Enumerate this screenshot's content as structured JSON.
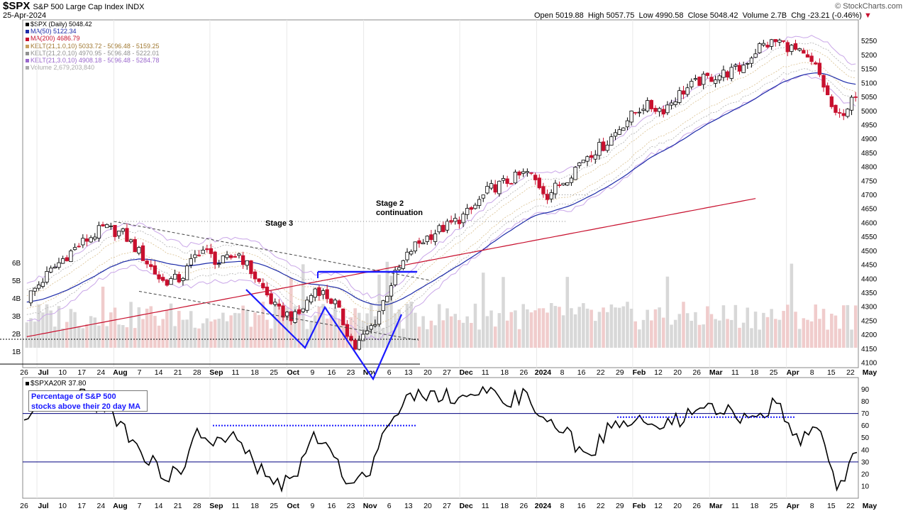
{
  "header": {
    "symbol": "$SPX",
    "description": "S&P 500 Large Cap Index",
    "exchange": "INDX",
    "date": "25-Apr-2024",
    "watermark": "© StockCharts.com",
    "open_label": "Open",
    "open": "5019.88",
    "high_label": "High",
    "high": "5057.75",
    "low_label": "Low",
    "low": "4990.58",
    "close_label": "Close",
    "close": "5048.42",
    "volume_label": "Volume",
    "volume": "2.7B",
    "chg_label": "Chg",
    "chg": "-23.21 (-0.46%)"
  },
  "legend": [
    {
      "text": "$SPX (Daily) 5048.42",
      "color": "#000000"
    },
    {
      "text": "MA(50) 5122.34",
      "color": "#1c2aa8"
    },
    {
      "text": "MA(200) 4686.79",
      "color": "#c8102e"
    },
    {
      "text": "KELT(21,1.0,10) 5033.72 - 5096.48 - 5159.25",
      "color": "#c8a060"
    },
    {
      "text": "KELT(21,2.0,10) 4970.95 - 5096.48 - 5222.01",
      "color": "#909090"
    },
    {
      "text": "KELT(21,3.0,10) 4908.18 - 5096.48 - 5284.78",
      "color": "#9966cc"
    },
    {
      "text": "Volume 2,679,203,840",
      "color": "#aaaaaa"
    }
  ],
  "lower_legend": "$SPXA20R 37.80",
  "annotations": {
    "stage3": "Stage 3",
    "stage2_line1": "Stage 2",
    "stage2_line2": "continuation",
    "box_line1": "Percentage of S&P 500",
    "box_line2": "stocks above their 20 day MA"
  },
  "x_labels": [
    "26",
    "Jul",
    "10",
    "17",
    "24",
    "Aug",
    "7",
    "14",
    "21",
    "28",
    "Sep",
    "11",
    "18",
    "25",
    "Oct",
    "9",
    "16",
    "23",
    "Nov",
    "6",
    "13",
    "20",
    "27",
    "Dec",
    "11",
    "18",
    "26",
    "2024",
    "8",
    "16",
    "22",
    "29",
    "Feb",
    "12",
    "20",
    "26",
    "Mar",
    "11",
    "18",
    "25",
    "Apr",
    "8",
    "15",
    "22",
    "May"
  ],
  "bold_x_labels": [
    "Jul",
    "Aug",
    "Sep",
    "Oct",
    "Nov",
    "Dec",
    "2024",
    "Feb",
    "Mar",
    "Apr",
    "May"
  ],
  "chart_data": [
    {
      "type": "candlestick",
      "title": "$SPX S&P 500 Large Cap Index",
      "y_range": [
        4100,
        5300
      ],
      "y_ticks": [
        4100,
        4150,
        4200,
        4250,
        4300,
        4350,
        4400,
        4450,
        4500,
        4550,
        4600,
        4650,
        4700,
        4750,
        4800,
        4850,
        4900,
        4950,
        5000,
        5050,
        5100,
        5150,
        5200,
        5250
      ],
      "volume_ticks": [
        "1B",
        "2B",
        "3B",
        "4B",
        "5B",
        "6B"
      ],
      "last_close": 5048.42,
      "ma50_last": 5122.34,
      "ma200_last": 4686.79,
      "close_path": [
        [
          "2023-06-26",
          4330
        ],
        [
          "2023-07-03",
          4410
        ],
        [
          "2023-07-10",
          4480
        ],
        [
          "2023-07-17",
          4535
        ],
        [
          "2023-07-24",
          4582
        ],
        [
          "2023-07-31",
          4560
        ],
        [
          "2023-08-07",
          4480
        ],
        [
          "2023-08-14",
          4390
        ],
        [
          "2023-08-21",
          4400
        ],
        [
          "2023-08-28",
          4510
        ],
        [
          "2023-09-05",
          4455
        ],
        [
          "2023-09-11",
          4490
        ],
        [
          "2023-09-18",
          4390
        ],
        [
          "2023-09-25",
          4285
        ],
        [
          "2023-10-02",
          4260
        ],
        [
          "2023-10-09",
          4370
        ],
        [
          "2023-10-16",
          4310
        ],
        [
          "2023-10-23",
          4150
        ],
        [
          "2023-10-30",
          4240
        ],
        [
          "2023-11-06",
          4400
        ],
        [
          "2023-11-13",
          4510
        ],
        [
          "2023-11-20",
          4560
        ],
        [
          "2023-11-27",
          4595
        ],
        [
          "2023-12-04",
          4640
        ],
        [
          "2023-12-11",
          4720
        ],
        [
          "2023-12-18",
          4750
        ],
        [
          "2023-12-27",
          4780
        ],
        [
          "2024-01-02",
          4700
        ],
        [
          "2024-01-08",
          4760
        ],
        [
          "2024-01-16",
          4840
        ],
        [
          "2024-01-22",
          4880
        ],
        [
          "2024-01-29",
          4960
        ],
        [
          "2024-02-05",
          5020
        ],
        [
          "2024-02-12",
          5005
        ],
        [
          "2024-02-20",
          5070
        ],
        [
          "2024-02-26",
          5110
        ],
        [
          "2024-03-04",
          5130
        ],
        [
          "2024-03-11",
          5150
        ],
        [
          "2024-03-18",
          5230
        ],
        [
          "2024-03-25",
          5250
        ],
        [
          "2024-04-01",
          5210
        ],
        [
          "2024-04-08",
          5150
        ],
        [
          "2024-04-15",
          4970
        ],
        [
          "2024-04-22",
          5048
        ]
      ]
    },
    {
      "type": "line",
      "title": "$SPXA20R",
      "series_name": "Percentage of S&P 500 stocks above their 20 day MA",
      "last_value": 37.8,
      "y_range": [
        0,
        95
      ],
      "y_ticks": [
        10,
        20,
        30,
        40,
        50,
        60,
        70,
        80,
        90
      ],
      "reference_lines": [
        30,
        70
      ],
      "points": [
        [
          "2023-06-26",
          62
        ],
        [
          "2023-07-03",
          72
        ],
        [
          "2023-07-10",
          80
        ],
        [
          "2023-07-17",
          84
        ],
        [
          "2023-07-24",
          76
        ],
        [
          "2023-07-31",
          62
        ],
        [
          "2023-08-07",
          40
        ],
        [
          "2023-08-14",
          22
        ],
        [
          "2023-08-21",
          18
        ],
        [
          "2023-08-28",
          55
        ],
        [
          "2023-09-05",
          45
        ],
        [
          "2023-09-11",
          50
        ],
        [
          "2023-09-18",
          25
        ],
        [
          "2023-09-25",
          12
        ],
        [
          "2023-10-02",
          15
        ],
        [
          "2023-10-09",
          55
        ],
        [
          "2023-10-16",
          30
        ],
        [
          "2023-10-23",
          12
        ],
        [
          "2023-10-30",
          28
        ],
        [
          "2023-11-06",
          72
        ],
        [
          "2023-11-13",
          85
        ],
        [
          "2023-11-20",
          88
        ],
        [
          "2023-11-27",
          84
        ],
        [
          "2023-12-04",
          85
        ],
        [
          "2023-12-11",
          86
        ],
        [
          "2023-12-18",
          82
        ],
        [
          "2023-12-27",
          84
        ],
        [
          "2024-01-02",
          60
        ],
        [
          "2024-01-08",
          55
        ],
        [
          "2024-01-16",
          30
        ],
        [
          "2024-01-22",
          55
        ],
        [
          "2024-01-29",
          65
        ],
        [
          "2024-02-05",
          62
        ],
        [
          "2024-02-12",
          58
        ],
        [
          "2024-02-20",
          66
        ],
        [
          "2024-02-26",
          72
        ],
        [
          "2024-03-04",
          74
        ],
        [
          "2024-03-11",
          66
        ],
        [
          "2024-03-18",
          72
        ],
        [
          "2024-03-25",
          78
        ],
        [
          "2024-04-01",
          50
        ],
        [
          "2024-04-08",
          55
        ],
        [
          "2024-04-15",
          10
        ],
        [
          "2024-04-22",
          37.8
        ]
      ]
    }
  ]
}
